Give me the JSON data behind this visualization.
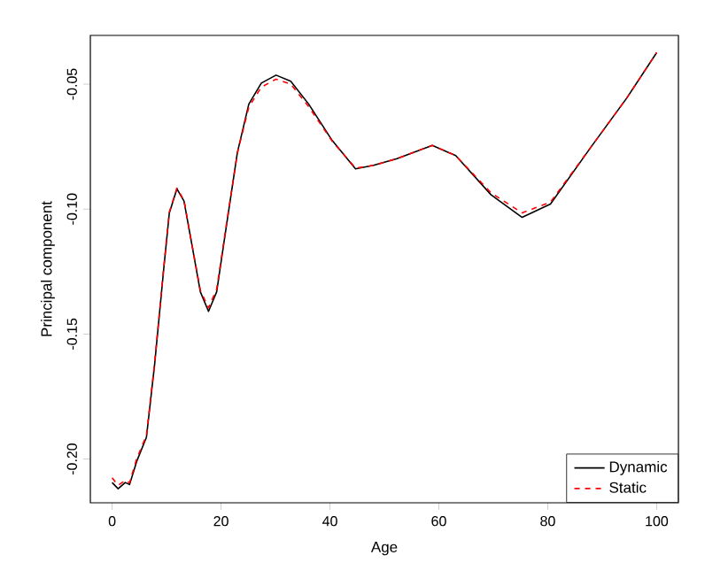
{
  "chart_data": {
    "type": "line",
    "xlabel": "Age",
    "ylabel": "Principal component",
    "xlim": [
      -4,
      104
    ],
    "ylim": [
      -0.2175,
      -0.0305
    ],
    "xticks": [
      0,
      20,
      40,
      60,
      80,
      100
    ],
    "yticks": [
      {
        "value": -0.2,
        "label": "-0.20"
      },
      {
        "value": -0.15,
        "label": "-0.15"
      },
      {
        "value": -0.1,
        "label": "-0.10"
      },
      {
        "value": -0.05,
        "label": "-0.05"
      }
    ],
    "legend": "bottom right",
    "grid": false,
    "series": [
      {
        "name": "Dynamic",
        "color": "#000000",
        "line_style": "solid",
        "x": [
          0,
          1.1,
          2.4,
          3.2,
          4.5,
          6.3,
          7.8,
          9.5,
          10.5,
          11.9,
          13.2,
          14.8,
          16.2,
          17.7,
          19.2,
          21,
          23,
          25.1,
          27.4,
          30.1,
          32.8,
          36.1,
          40.4,
          44.7,
          48,
          52.3,
          58.8,
          63.1,
          69.6,
          75.3,
          80.5,
          88,
          94.5,
          100
        ],
        "values": [
          -0.2094,
          -0.2119,
          -0.2094,
          -0.2102,
          -0.201,
          -0.1913,
          -0.1622,
          -0.1234,
          -0.1016,
          -0.0919,
          -0.0968,
          -0.1161,
          -0.1331,
          -0.1409,
          -0.1331,
          -0.1065,
          -0.0774,
          -0.058,
          -0.0496,
          -0.0464,
          -0.0488,
          -0.058,
          -0.0725,
          -0.0839,
          -0.0825,
          -0.0798,
          -0.0745,
          -0.0786,
          -0.0943,
          -0.1033,
          -0.098,
          -0.075,
          -0.0556,
          -0.0374
        ]
      },
      {
        "name": "Static",
        "color": "#ff0000",
        "line_style": "dashed",
        "x": [
          0,
          1.1,
          2.4,
          3.2,
          4.5,
          6.3,
          7.8,
          9.5,
          10.5,
          11.9,
          13.2,
          14.8,
          16.2,
          17.7,
          19.2,
          21,
          23,
          25.1,
          27.4,
          30.1,
          32.8,
          36.1,
          40.4,
          44.7,
          48,
          52.3,
          58.8,
          63.1,
          69.6,
          75.3,
          80.5,
          88,
          94.5,
          100
        ],
        "values": [
          -0.2075,
          -0.2105,
          -0.2085,
          -0.2095,
          -0.2,
          -0.1905,
          -0.1615,
          -0.1228,
          -0.1012,
          -0.0916,
          -0.0965,
          -0.1158,
          -0.1325,
          -0.1395,
          -0.132,
          -0.106,
          -0.0776,
          -0.0592,
          -0.0512,
          -0.048,
          -0.05,
          -0.059,
          -0.0728,
          -0.0836,
          -0.0825,
          -0.0798,
          -0.0745,
          -0.0786,
          -0.0935,
          -0.1015,
          -0.0972,
          -0.075,
          -0.0556,
          -0.0374
        ]
      }
    ]
  }
}
